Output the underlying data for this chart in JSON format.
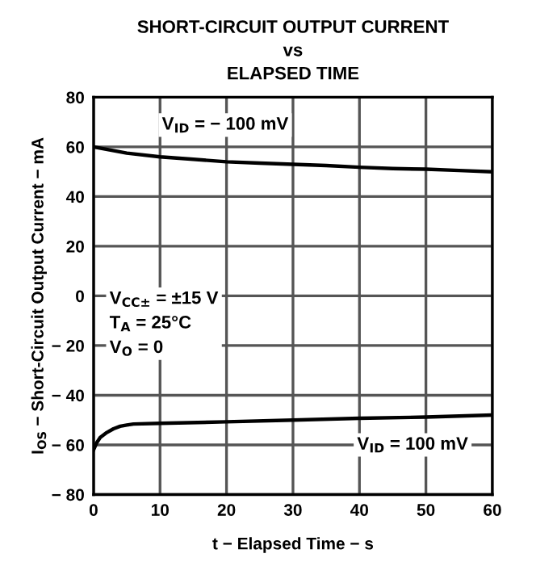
{
  "chart_data": {
    "type": "line",
    "title": "SHORT-CIRCUIT OUTPUT CURRENT\nvs\nELAPSED TIME",
    "xlabel": "t − Elapsed Time − s",
    "ylabel": "I$_{OS}$ − Short-Circuit Output Current − mA",
    "series": [
      {
        "color": "#000000",
        "x": [
          0,
          5,
          10,
          15,
          20,
          25,
          30,
          35,
          40,
          45,
          50,
          55,
          60
        ],
        "values": [
          60,
          57.5,
          56,
          55,
          54,
          53.5,
          53,
          52.5,
          51.8,
          51.3,
          51,
          50.5,
          50
        ]
      },
      {
        "color": "#000000",
        "x": [
          0,
          0.5,
          1,
          2,
          3,
          4,
          5,
          6,
          10,
          20,
          30,
          40,
          50,
          60
        ],
        "values": [
          -62,
          -59,
          -57,
          -55,
          -53.5,
          -52.5,
          -52,
          -51.6,
          -51.3,
          -50.7,
          -50,
          -49.3,
          -48.8,
          -48
        ]
      }
    ],
    "xlim": [
      0,
      60
    ],
    "xticks": [
      0,
      10,
      20,
      30,
      40,
      50,
      60
    ],
    "ylim": [
      -80,
      80
    ],
    "yticks": [
      80,
      60,
      40,
      20,
      0,
      {
        "value": -20,
        "label": "− 20"
      },
      {
        "value": -40,
        "label": "− 40"
      },
      {
        "value": -60,
        "label": "− 60"
      },
      {
        "value": -80,
        "label": "− 80"
      }
    ],
    "grid": true,
    "line_style": "solid",
    "annotations": [
      "V$_{ID}$ = − 100 mV",
      "V$_{ID}$ = 100 mV",
      "V$_{CC±}$ = ±15 V\nT$_{A}$ = 25°C\nV$_{O}$ = 0"
    ]
  }
}
